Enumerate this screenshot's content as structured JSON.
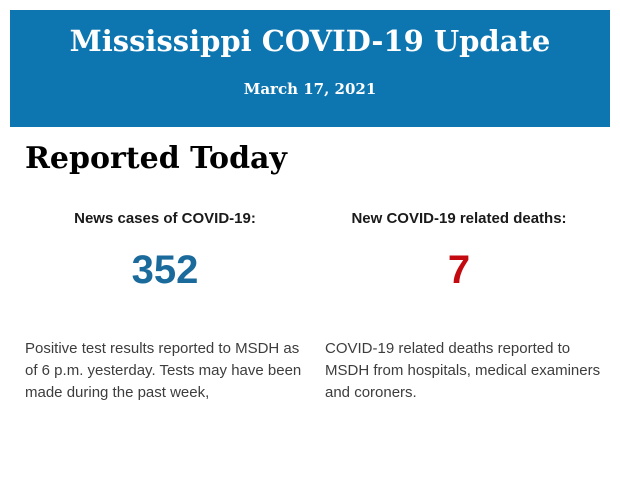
{
  "header": {
    "title": "Mississippi COVID-19 Update",
    "date": "March 17, 2021"
  },
  "section": {
    "title": "Reported Today"
  },
  "stats": {
    "cases": {
      "label": "News cases of COVID-19:",
      "value": "352",
      "value_color": "#1b6a9c",
      "description": "Positive test results reported to MSDH as\nof 6 p.m. yesterday. Tests may have been\nmade during the past week,"
    },
    "deaths": {
      "label": "New COVID-19 related deaths:",
      "value": "7",
      "value_color": "#c20a10",
      "description": "COVID-19 related deaths reported to\nMSDH from hospitals, medical examiners\nand coroners."
    }
  },
  "colors": {
    "banner": "#0d76b0",
    "background": "#ffffff"
  }
}
